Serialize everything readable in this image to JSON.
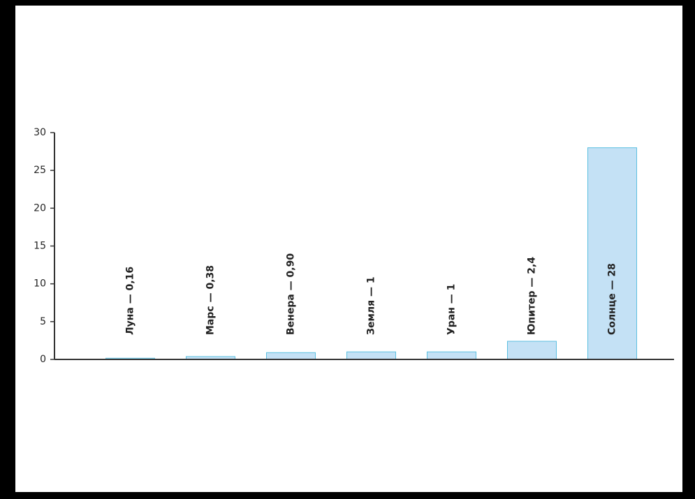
{
  "chart_data": {
    "type": "bar",
    "categories": [
      "Луна — 0,16",
      "Марс — 0,38",
      "Венера — 0,90",
      "Земля — 1",
      "Уран — 1",
      "Юпитер — 2,4",
      "Солнце — 28"
    ],
    "values": [
      0.16,
      0.38,
      0.9,
      1,
      1,
      2.4,
      28
    ],
    "color": "#c4e1f5",
    "ylim": [
      0,
      30
    ],
    "yticks": [
      0,
      5,
      10,
      15,
      20,
      25,
      30
    ]
  }
}
